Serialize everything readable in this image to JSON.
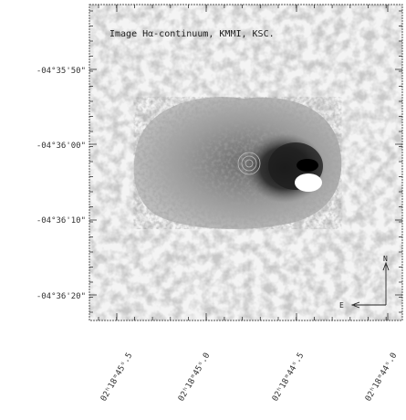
{
  "figure": {
    "title": "Image Hα-continuum, KMMI, KSC.",
    "y_ticks": [
      "-04°35'50\"",
      "-04°36'00\"",
      "-04°36'10\"",
      "-04°36'20\""
    ],
    "x_ticks": [
      "02ʰ18ᵐ45ˢ.5",
      "02ʰ18ᵐ45ˢ.0",
      "02ʰ18ᵐ44ˢ.5",
      "02ʰ18ᵐ44ˢ.0"
    ],
    "compass": {
      "east": "E",
      "north": "N"
    },
    "colormap": "greyscale, inverted"
  }
}
